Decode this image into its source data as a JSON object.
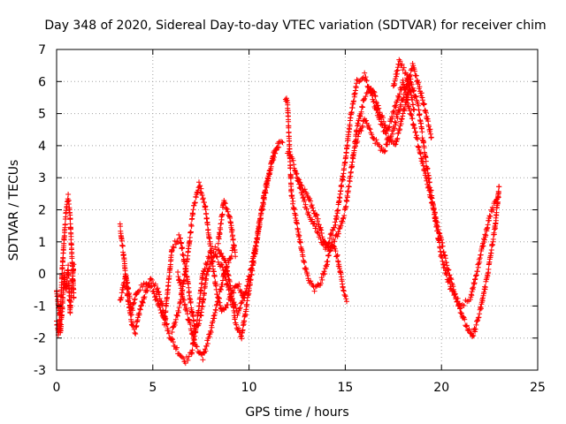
{
  "chart_data": {
    "type": "scatter",
    "title": "Day 348 of 2020, Sidereal Day-to-day VTEC variation (SDTVAR) for receiver chim",
    "xlabel": "GPS time / hours",
    "ylabel": "SDTVAR / TECUs",
    "xlim": [
      0,
      25
    ],
    "ylim": [
      -3,
      7
    ],
    "xticks": [
      0,
      5,
      10,
      15,
      20,
      25
    ],
    "yticks": [
      -3,
      -2,
      -1,
      0,
      1,
      2,
      3,
      4,
      5,
      6,
      7
    ],
    "grid": true,
    "marker": "+",
    "series": [
      {
        "name": "SDTVAR",
        "color": "#ff0000",
        "segments": [
          {
            "x": [
              0.0,
              0.1,
              0.2,
              0.3,
              0.4,
              0.5,
              0.6,
              0.7,
              0.8,
              0.9
            ],
            "y": [
              -1.5,
              -1.9,
              -1.2,
              0.2,
              1.2,
              2.0,
              2.4,
              1.8,
              0.5,
              -0.8
            ]
          },
          {
            "x": [
              0.0,
              0.1,
              0.2,
              0.3,
              0.4,
              0.5,
              0.6,
              0.7,
              0.8,
              0.9
            ],
            "y": [
              -0.5,
              -1.0,
              -1.8,
              -1.0,
              0.0,
              -0.5,
              0.2,
              -1.2,
              -0.3,
              0.3
            ]
          },
          {
            "x": [
              3.3,
              3.5,
              3.7,
              3.9,
              4.1,
              4.3,
              4.6,
              4.9,
              5.2,
              5.5,
              5.8,
              6.1,
              6.4,
              6.7,
              7.0,
              7.3,
              7.6,
              8.0,
              8.4,
              8.8,
              9.0,
              9.3,
              9.6,
              10.0,
              10.4,
              10.8,
              11.2,
              11.5,
              11.8
            ],
            "y": [
              1.5,
              0.5,
              -0.8,
              -1.5,
              -1.8,
              -1.2,
              -0.6,
              -0.2,
              -0.4,
              -1.0,
              -1.8,
              -2.2,
              -2.5,
              -2.7,
              -2.5,
              -1.5,
              0.0,
              0.7,
              0.8,
              0.3,
              -0.3,
              -1.5,
              -2.0,
              -0.5,
              1.0,
              2.5,
              3.5,
              4.0,
              4.2
            ]
          },
          {
            "x": [
              3.3,
              3.6,
              3.9,
              4.2,
              4.6,
              5.0,
              5.3,
              5.6,
              6.0,
              6.4,
              6.8,
              7.2,
              7.5,
              7.8,
              8.2,
              8.6,
              9.0,
              9.4,
              9.8,
              10.2,
              10.6,
              11.0,
              11.3,
              11.6
            ],
            "y": [
              -0.9,
              0.0,
              -1.2,
              -0.5,
              -0.3,
              -0.5,
              -1.0,
              -1.5,
              0.8,
              1.2,
              -0.2,
              -1.8,
              -1.3,
              0.0,
              0.6,
              0.2,
              -0.6,
              -1.2,
              -0.6,
              0.4,
              1.8,
              3.0,
              3.8,
              4.0
            ]
          },
          {
            "x": [
              6.0,
              6.4,
              6.8,
              7.1,
              7.4,
              7.7,
              8.0,
              8.3,
              8.6,
              9.0,
              9.4,
              9.8
            ],
            "y": [
              -1.8,
              -1.0,
              0.5,
              2.0,
              2.8,
              2.2,
              0.8,
              -0.5,
              -1.2,
              -0.8,
              -0.3,
              -0.8
            ]
          },
          {
            "x": [
              6.3,
              6.6,
              6.9,
              7.2,
              7.6,
              8.0,
              8.4,
              8.8,
              9.2
            ],
            "y": [
              0.0,
              -0.8,
              -1.5,
              -2.2,
              -2.6,
              -1.8,
              -0.8,
              0.2,
              0.8
            ]
          },
          {
            "x": [
              8.4,
              8.7,
              9.0,
              9.3
            ],
            "y": [
              1.0,
              2.3,
              1.8,
              0.5
            ]
          },
          {
            "x": [
              11.9,
              12.0,
              12.1,
              12.2,
              12.5,
              12.8,
              13.1,
              13.4,
              13.7,
              14.0,
              14.3,
              14.6,
              14.9,
              15.1
            ],
            "y": [
              5.5,
              5.3,
              4.0,
              2.5,
              1.5,
              0.5,
              -0.2,
              -0.5,
              -0.3,
              0.2,
              1.0,
              0.5,
              -0.5,
              -0.9
            ]
          },
          {
            "x": [
              12.0,
              12.3,
              12.6,
              13.0,
              13.4,
              13.8,
              14.2,
              14.6,
              15.0,
              15.3,
              15.6,
              16.0,
              16.4,
              16.8,
              17.2,
              17.6,
              18.0,
              18.4,
              18.8,
              19.2,
              19.6,
              20.0,
              20.4,
              20.8,
              21.2,
              21.6,
              22.0,
              22.4,
              22.8,
              23.0
            ],
            "y": [
              3.8,
              3.5,
              2.8,
              2.0,
              1.5,
              1.0,
              0.8,
              1.2,
              2.0,
              3.2,
              4.5,
              5.5,
              5.8,
              5.0,
              4.5,
              5.2,
              6.0,
              5.0,
              4.0,
              3.0,
              2.0,
              1.0,
              0.0,
              -0.8,
              -1.5,
              -2.0,
              -1.2,
              0.0,
              1.5,
              2.8
            ]
          },
          {
            "x": [
              12.5,
              13.0,
              13.5,
              14.0,
              14.5,
              15.0,
              15.3,
              15.6,
              16.0,
              16.4,
              16.8,
              17.2,
              17.6,
              18.0,
              18.4,
              18.8,
              19.2,
              19.6,
              20.0,
              20.5,
              21.0,
              21.5,
              22.0,
              22.5,
              23.0
            ],
            "y": [
              3.0,
              2.5,
              1.8,
              0.8,
              1.6,
              3.5,
              5.0,
              6.0,
              6.2,
              5.5,
              4.8,
              4.2,
              4.0,
              5.0,
              6.0,
              5.2,
              3.5,
              2.0,
              0.5,
              -0.5,
              -1.0,
              -0.8,
              0.5,
              1.8,
              2.5
            ]
          },
          {
            "x": [
              15.5,
              16.0,
              16.5,
              17.0,
              17.5,
              18.0,
              18.5,
              19.0,
              19.5
            ],
            "y": [
              4.0,
              4.8,
              4.2,
              3.8,
              4.5,
              5.5,
              6.5,
              5.5,
              4.2
            ]
          },
          {
            "x": [
              17.5,
              17.8,
              18.2,
              18.6
            ],
            "y": [
              5.8,
              6.6,
              6.2,
              5.0
            ]
          }
        ]
      }
    ]
  }
}
